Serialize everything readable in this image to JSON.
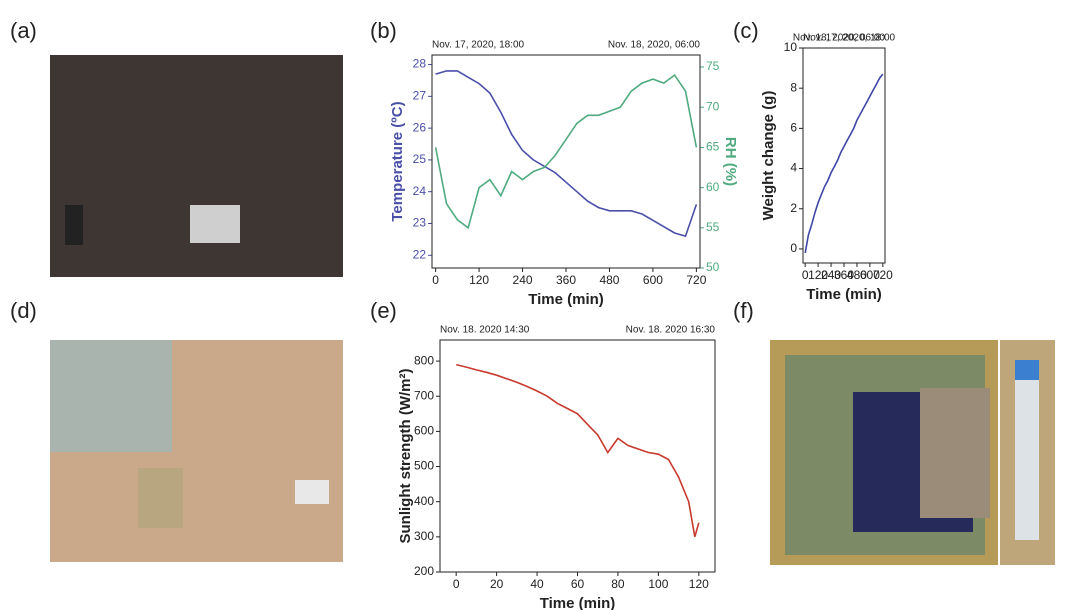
{
  "photos": [
    {
      "label": "(a)"
    },
    {
      "label": "(d)"
    },
    {
      "label": "(f)"
    }
  ],
  "chart_data": [
    {
      "type": "line",
      "panel_label": "(b)",
      "annotations": [
        "Nov. 17, 2020, 18:00",
        "Nov. 18, 2020, 06:00"
      ],
      "xlabel": "Time (min)",
      "ylabel": "Temperature (ºC)",
      "y2label": "RH (%)",
      "xlim": [
        -10,
        730
      ],
      "xticks": [
        0,
        120,
        240,
        360,
        480,
        600,
        720
      ],
      "ylim": [
        21.6,
        28.3
      ],
      "yticks": [
        22,
        23,
        24,
        25,
        26,
        27,
        28
      ],
      "y2lim": [
        50,
        76.5
      ],
      "y2ticks": [
        50,
        55,
        60,
        65,
        70,
        75
      ],
      "x": [
        0,
        30,
        60,
        90,
        120,
        150,
        180,
        210,
        240,
        270,
        300,
        330,
        360,
        390,
        420,
        450,
        480,
        510,
        540,
        570,
        600,
        630,
        660,
        690,
        720
      ],
      "series": [
        {
          "color": "#4a4fa8",
          "values": [
            27.7,
            27.8,
            27.8,
            27.6,
            27.4,
            27.1,
            26.5,
            25.8,
            25.3,
            25.0,
            24.8,
            24.6,
            24.3,
            24.0,
            23.7,
            23.5,
            23.4,
            23.4,
            23.4,
            23.3,
            23.1,
            22.9,
            22.7,
            22.6,
            23.6
          ]
        },
        {
          "color": "#4faa7f",
          "axis": "y2",
          "values": [
            65,
            58,
            56,
            55,
            60,
            61,
            59,
            62,
            61,
            62,
            62.5,
            64,
            66,
            68,
            69,
            69,
            69.5,
            70,
            72,
            73,
            73.5,
            73,
            74,
            72,
            65
          ]
        }
      ]
    },
    {
      "type": "line",
      "panel_label": "(c)",
      "annotations": [
        "Nov. 17, 2020, 18:00",
        "Nov. 18, 2020, 06:00"
      ],
      "xlabel": "Time (min)",
      "ylabel": "Weight change (g)",
      "xlim": [
        -20,
        740
      ],
      "xticks": [
        0,
        120,
        240,
        360,
        480,
        600,
        720
      ],
      "ylim": [
        -0.7,
        10
      ],
      "yticks": [
        0,
        2,
        4,
        6,
        8,
        10
      ],
      "x": [
        0,
        30,
        60,
        90,
        120,
        150,
        180,
        210,
        240,
        270,
        300,
        330,
        360,
        390,
        420,
        450,
        480,
        510,
        540,
        570,
        600,
        630,
        660,
        690,
        720
      ],
      "series": [
        {
          "color": "#3f46a6",
          "values": [
            -0.2,
            0.7,
            1.2,
            1.8,
            2.3,
            2.7,
            3.1,
            3.4,
            3.8,
            4.1,
            4.4,
            4.8,
            5.1,
            5.4,
            5.7,
            6.0,
            6.4,
            6.7,
            7.0,
            7.3,
            7.6,
            7.9,
            8.2,
            8.5,
            8.7
          ]
        }
      ]
    },
    {
      "type": "line",
      "panel_label": "(e)",
      "annotations": [
        "Nov. 18. 2020 14:30",
        "Nov. 18. 2020 16:30"
      ],
      "xlabel": "Time (min)",
      "ylabel": "Sunlight strength (W/m²)",
      "xlim": [
        -8,
        128
      ],
      "xticks": [
        0,
        20,
        40,
        60,
        80,
        100,
        120
      ],
      "ylim": [
        200,
        860
      ],
      "yticks": [
        200,
        300,
        400,
        500,
        600,
        700,
        800
      ],
      "x": [
        0,
        5,
        10,
        15,
        20,
        25,
        30,
        35,
        40,
        45,
        50,
        55,
        60,
        65,
        70,
        75,
        80,
        85,
        90,
        95,
        100,
        105,
        110,
        115,
        118,
        120
      ],
      "series": [
        {
          "color": "#c83a2e",
          "values": [
            790,
            783,
            775,
            768,
            760,
            750,
            740,
            728,
            715,
            700,
            680,
            665,
            650,
            620,
            590,
            540,
            580,
            560,
            550,
            540,
            535,
            520,
            470,
            400,
            300,
            340
          ]
        }
      ]
    }
  ]
}
